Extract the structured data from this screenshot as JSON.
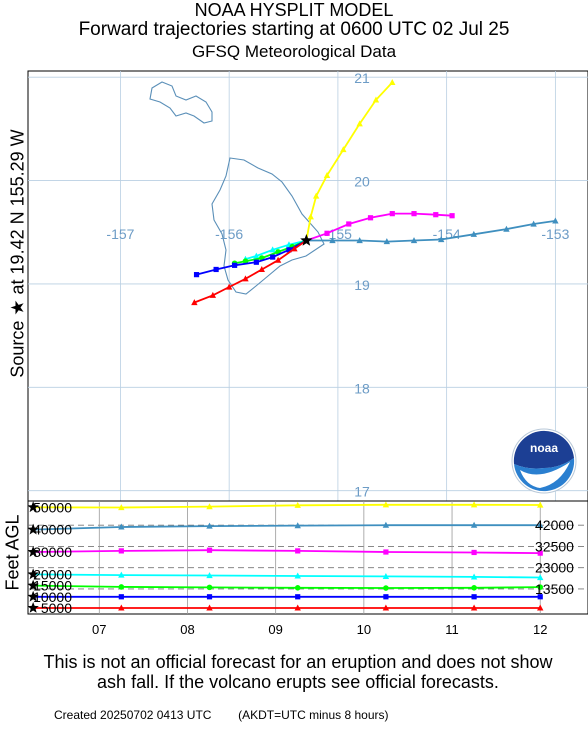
{
  "header": {
    "model": "NOAA HYSPLIT MODEL",
    "title": "Forward trajectories starting at 0600 UTC 02 Jul 25",
    "met_data": "GFSQ Meteorological Data"
  },
  "source_label": "Source ★ at    19.42 N  155.29 W",
  "altitude_axis_label": "Feet AGL",
  "colors": {
    "yellow": "#ffff00",
    "teal": "#3f8fbf",
    "magenta": "#ff00ff",
    "cyan": "#00ffff",
    "green": "#00ff00",
    "blue": "#0000ff",
    "red": "#ff0000",
    "map_lines": "#5a8fb8"
  },
  "logo": {
    "text": "noaa",
    "icon": "noaa-logo"
  },
  "chart_data": [
    {
      "type": "line",
      "view": "map",
      "x_axis": "longitude",
      "y_axis": "latitude",
      "xlim": [
        -157.85,
        -152.7
      ],
      "ylim": [
        16.9,
        21.06
      ],
      "lon_labels": [
        "-157",
        "-156",
        "-155",
        "-154",
        "-153"
      ],
      "lat_labels": [
        "17",
        "18",
        "19",
        "20",
        "21"
      ],
      "source": {
        "lat": 19.42,
        "lon": -155.29
      },
      "series": [
        {
          "color": "yellow",
          "marker": "triangle",
          "points": [
            [
              -155.29,
              19.42
            ],
            [
              -155.25,
              19.65
            ],
            [
              -155.2,
              19.85
            ],
            [
              -155.1,
              20.05
            ],
            [
              -154.95,
              20.3
            ],
            [
              -154.8,
              20.55
            ],
            [
              -154.65,
              20.78
            ],
            [
              -154.5,
              20.95
            ]
          ]
        },
        {
          "color": "teal",
          "marker": "triangle",
          "points": [
            [
              -155.29,
              19.42
            ],
            [
              -155.05,
              19.42
            ],
            [
              -154.8,
              19.42
            ],
            [
              -154.55,
              19.41
            ],
            [
              -154.3,
              19.42
            ],
            [
              -154.05,
              19.43
            ],
            [
              -153.75,
              19.48
            ],
            [
              -153.45,
              19.53
            ],
            [
              -153.2,
              19.58
            ],
            [
              -153.0,
              19.61
            ]
          ]
        },
        {
          "color": "magenta",
          "marker": "square",
          "points": [
            [
              -155.29,
              19.42
            ],
            [
              -155.1,
              19.49
            ],
            [
              -154.9,
              19.58
            ],
            [
              -154.7,
              19.64
            ],
            [
              -154.5,
              19.68
            ],
            [
              -154.3,
              19.68
            ],
            [
              -154.1,
              19.67
            ],
            [
              -153.95,
              19.66
            ]
          ]
        },
        {
          "color": "cyan",
          "marker": "triangle",
          "points": [
            [
              -155.29,
              19.42
            ],
            [
              -155.45,
              19.38
            ],
            [
              -155.6,
              19.33
            ],
            [
              -155.75,
              19.27
            ],
            [
              -155.85,
              19.24
            ]
          ]
        },
        {
          "color": "green",
          "marker": "circle",
          "points": [
            [
              -155.29,
              19.42
            ],
            [
              -155.42,
              19.36
            ],
            [
              -155.55,
              19.31
            ],
            [
              -155.7,
              19.25
            ],
            [
              -155.85,
              19.22
            ],
            [
              -155.95,
              19.2
            ]
          ]
        },
        {
          "color": "blue",
          "marker": "square",
          "points": [
            [
              -155.29,
              19.42
            ],
            [
              -155.45,
              19.33
            ],
            [
              -155.6,
              19.26
            ],
            [
              -155.75,
              19.21
            ],
            [
              -155.95,
              19.18
            ],
            [
              -156.12,
              19.14
            ],
            [
              -156.3,
              19.09
            ]
          ]
        },
        {
          "color": "red",
          "marker": "triangle",
          "points": [
            [
              -155.29,
              19.42
            ],
            [
              -155.4,
              19.34
            ],
            [
              -155.55,
              19.23
            ],
            [
              -155.7,
              19.14
            ],
            [
              -155.85,
              19.05
            ],
            [
              -156.0,
              18.97
            ],
            [
              -156.15,
              18.89
            ],
            [
              -156.32,
              18.82
            ]
          ]
        }
      ]
    },
    {
      "type": "line",
      "view": "altitude",
      "x_labels": [
        "07",
        "08",
        "09",
        "10",
        "11",
        "12"
      ],
      "x_hours_since_start": [
        18,
        42,
        66,
        90,
        114,
        138
      ],
      "xlim": [
        -1.4,
        151
      ],
      "ylim": [
        2300,
        52800
      ],
      "y_tick_labels": [
        "50000",
        "40000",
        "30000",
        "20000",
        "15000",
        "10000",
        "5000"
      ],
      "y_ticks": [
        50000,
        40000,
        30000,
        20000,
        15000,
        10000,
        5000
      ],
      "right_labels": [
        "42000",
        "32500",
        "23000",
        "13500"
      ],
      "right_label_values": [
        42000,
        32500,
        23000,
        13500
      ],
      "start_levels": [
        50000,
        40000,
        30000,
        20000,
        15000,
        10000,
        5000
      ],
      "series": [
        {
          "color": "yellow",
          "marker": "triangle",
          "points": [
            [
              0,
              50000
            ],
            [
              24,
              49900
            ],
            [
              48,
              50300
            ],
            [
              72,
              50900
            ],
            [
              96,
              51100
            ],
            [
              120,
              51100
            ],
            [
              138,
              51000
            ]
          ]
        },
        {
          "color": "teal",
          "marker": "triangle",
          "points": [
            [
              0,
              40000
            ],
            [
              24,
              41200
            ],
            [
              48,
              41600
            ],
            [
              72,
              41800
            ],
            [
              96,
              42000
            ],
            [
              120,
              42000
            ],
            [
              138,
              42000
            ]
          ]
        },
        {
          "color": "magenta",
          "marker": "square",
          "points": [
            [
              0,
              30000
            ],
            [
              24,
              30500
            ],
            [
              48,
              30800
            ],
            [
              72,
              30500
            ],
            [
              96,
              30000
            ],
            [
              120,
              29800
            ],
            [
              138,
              29500
            ]
          ]
        },
        {
          "color": "cyan",
          "marker": "triangle",
          "points": [
            [
              0,
              20000
            ],
            [
              24,
              19700
            ],
            [
              48,
              19500
            ],
            [
              72,
              19300
            ],
            [
              96,
              19100
            ],
            [
              120,
              18900
            ],
            [
              138,
              18600
            ]
          ]
        },
        {
          "color": "green",
          "marker": "circle",
          "points": [
            [
              0,
              15000
            ],
            [
              24,
              14400
            ],
            [
              48,
              14200
            ],
            [
              72,
              14000
            ],
            [
              96,
              13900
            ],
            [
              120,
              14000
            ],
            [
              138,
              14300
            ]
          ]
        },
        {
          "color": "blue",
          "marker": "square",
          "points": [
            [
              0,
              10000
            ],
            [
              24,
              10000
            ],
            [
              48,
              10000
            ],
            [
              72,
              10000
            ],
            [
              96,
              10000
            ],
            [
              120,
              10000
            ],
            [
              138,
              10000
            ]
          ]
        },
        {
          "color": "red",
          "marker": "triangle",
          "points": [
            [
              0,
              5000
            ],
            [
              24,
              5000
            ],
            [
              48,
              5000
            ],
            [
              72,
              5000
            ],
            [
              96,
              5000
            ],
            [
              120,
              5000
            ],
            [
              138,
              5000
            ]
          ]
        }
      ]
    }
  ],
  "disclaimer": "This is not an official forecast for an eruption and does not show ash fall. If the volcano erupts see official forecasts.",
  "footer": "Created 20250702 0413 UTC        (AKDT=UTC minus 8 hours)"
}
